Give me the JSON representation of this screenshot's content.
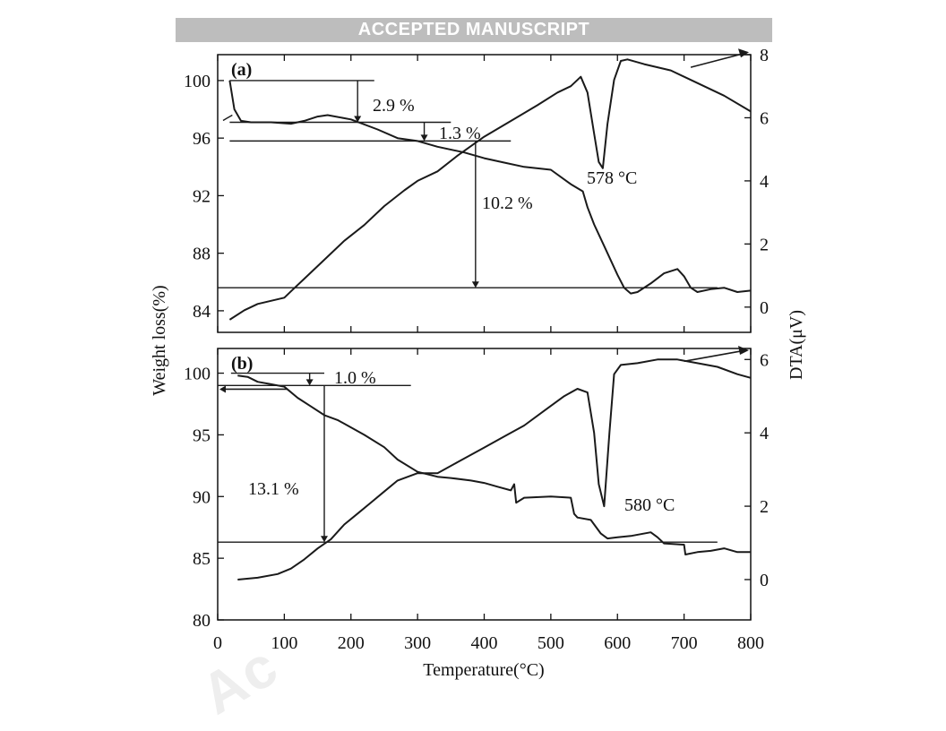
{
  "banner": "ACCEPTED MANUSCRIPT",
  "watermark": "Ac",
  "colors": {
    "line": "#1a1a1a",
    "banner_bg": "#bdbdbd",
    "banner_text": "#ffffff"
  },
  "shared": {
    "xlabel": "Temperature(°C)",
    "ylabel_left": "Weight loss(%)",
    "ylabel_right": "DTA(μV)",
    "xlim": [
      0,
      800
    ],
    "xticks": [
      0,
      100,
      200,
      300,
      400,
      500,
      600,
      700,
      800
    ]
  },
  "chart_data": [
    {
      "type": "line",
      "panel": "(a)",
      "ylim_left": [
        82.5,
        101.8
      ],
      "yticks_left": [
        84,
        88,
        92,
        96,
        100
      ],
      "ylim_right": [
        -0.8,
        8
      ],
      "yticks_right": [
        0,
        2,
        4,
        6,
        8
      ],
      "series": [
        {
          "axis": "left",
          "x": [
            18,
            25,
            35,
            50,
            80,
            110,
            130,
            150,
            165,
            200,
            240,
            270,
            300,
            330,
            370,
            400,
            430,
            460,
            500,
            530,
            548,
            555,
            565,
            580,
            600,
            610,
            620,
            630,
            650,
            670,
            690,
            700,
            710,
            720,
            740,
            760,
            780,
            800
          ],
          "y": [
            100,
            98,
            97.2,
            97.1,
            97.1,
            97.0,
            97.2,
            97.5,
            97.6,
            97.3,
            96.6,
            96.0,
            95.8,
            95.4,
            95.0,
            94.6,
            94.3,
            94.0,
            93.8,
            92.8,
            92.3,
            91.2,
            90.0,
            88.5,
            86.5,
            85.6,
            85.2,
            85.3,
            85.9,
            86.6,
            86.9,
            86.4,
            85.6,
            85.3,
            85.5,
            85.6,
            85.3,
            85.4
          ]
        },
        {
          "axis": "right",
          "x": [
            18,
            40,
            60,
            80,
            100,
            110,
            130,
            160,
            190,
            220,
            250,
            280,
            300,
            330,
            360,
            400,
            440,
            480,
            510,
            530,
            545,
            555,
            565,
            572,
            578,
            585,
            595,
            605,
            615,
            640,
            680,
            720,
            760,
            800
          ],
          "y": [
            -0.4,
            -0.1,
            0.1,
            0.2,
            0.3,
            0.5,
            0.9,
            1.5,
            2.1,
            2.6,
            3.2,
            3.7,
            4.0,
            4.3,
            4.8,
            5.4,
            5.9,
            6.4,
            6.8,
            7.0,
            7.3,
            6.8,
            5.5,
            4.6,
            4.4,
            5.8,
            7.2,
            7.8,
            7.85,
            7.7,
            7.5,
            7.1,
            6.7,
            6.2
          ]
        }
      ],
      "annotations": [
        "2.9 %",
        "1.3 %",
        "10.2 %",
        "578 °C"
      ]
    },
    {
      "type": "line",
      "panel": "(b)",
      "ylim_left": [
        80,
        102
      ],
      "yticks_left": [
        80,
        85,
        90,
        95,
        100
      ],
      "ylim_right": [
        -1.1,
        6.3
      ],
      "yticks_right": [
        0,
        2,
        4,
        6
      ],
      "series": [
        {
          "axis": "left",
          "x": [
            30,
            45,
            60,
            80,
            100,
            120,
            140,
            160,
            180,
            200,
            220,
            250,
            270,
            300,
            330,
            350,
            380,
            400,
            420,
            440,
            445,
            448,
            460,
            500,
            530,
            535,
            540,
            560,
            575,
            585,
            600,
            620,
            650,
            660,
            670,
            700,
            702,
            720,
            740,
            760,
            780,
            800
          ],
          "y": [
            99.8,
            99.7,
            99.3,
            99.1,
            98.9,
            98.0,
            97.3,
            96.6,
            96.2,
            95.6,
            95.0,
            94.0,
            93.0,
            92.0,
            91.6,
            91.5,
            91.3,
            91.1,
            90.8,
            90.5,
            91.0,
            89.5,
            89.9,
            90.0,
            89.9,
            88.6,
            88.3,
            88.1,
            87.0,
            86.6,
            86.7,
            86.8,
            87.1,
            86.7,
            86.2,
            86.1,
            85.3,
            85.5,
            85.6,
            85.8,
            85.5,
            85.5
          ]
        },
        {
          "axis": "right",
          "x": [
            30,
            60,
            90,
            110,
            130,
            150,
            170,
            190,
            210,
            230,
            250,
            270,
            300,
            330,
            360,
            400,
            430,
            460,
            490,
            520,
            540,
            555,
            565,
            572,
            580,
            588,
            595,
            605,
            630,
            660,
            690,
            720,
            750,
            780,
            800
          ],
          "y": [
            0.0,
            0.05,
            0.15,
            0.3,
            0.55,
            0.85,
            1.1,
            1.5,
            1.8,
            2.1,
            2.4,
            2.7,
            2.9,
            2.9,
            3.2,
            3.6,
            3.9,
            4.2,
            4.6,
            5.0,
            5.2,
            5.1,
            4.0,
            2.6,
            2.0,
            4.0,
            5.6,
            5.85,
            5.9,
            6.0,
            6.0,
            5.9,
            5.8,
            5.6,
            5.5
          ]
        }
      ],
      "annotations": [
        "1.0 %",
        "13.1 %",
        "580 °C"
      ]
    }
  ]
}
